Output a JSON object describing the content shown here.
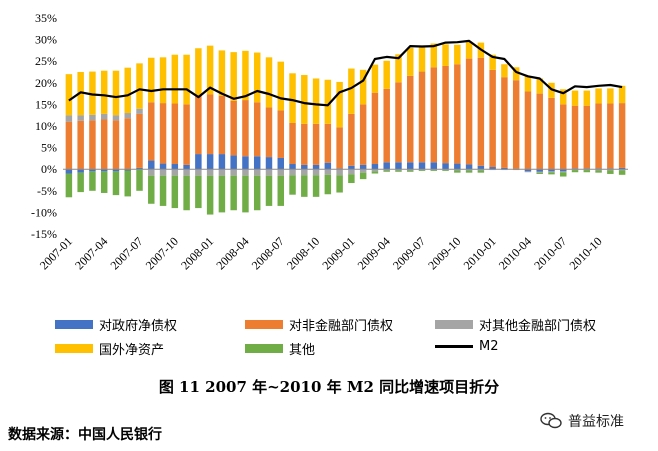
{
  "chart_data": {
    "type": "bar",
    "stacked": true,
    "y_axis": {
      "ylim": [
        -15,
        35
      ],
      "ticks": [
        "35%",
        "30%",
        "25%",
        "20%",
        "15%",
        "10%",
        "5%",
        "0%",
        "-5%",
        "-10%",
        "-15%"
      ]
    },
    "x_tick_labels": [
      {
        "label": "2007-01",
        "index": 0
      },
      {
        "label": "2007-04",
        "index": 3
      },
      {
        "label": "2007-07",
        "index": 6
      },
      {
        "label": "2007-10",
        "index": 9
      },
      {
        "label": "2008-01",
        "index": 12
      },
      {
        "label": "2008-04",
        "index": 15
      },
      {
        "label": "2008-07",
        "index": 18
      },
      {
        "label": "2008-10",
        "index": 21
      },
      {
        "label": "2009-01",
        "index": 24
      },
      {
        "label": "2009-04",
        "index": 27
      },
      {
        "label": "2009-07",
        "index": 30
      },
      {
        "label": "2009-10",
        "index": 33
      },
      {
        "label": "2010-01",
        "index": 36
      },
      {
        "label": "2010-04",
        "index": 39
      },
      {
        "label": "2010-07",
        "index": 42
      },
      {
        "label": "2010-10",
        "index": 45
      }
    ],
    "months": [
      "2007-01",
      "2007-02",
      "2007-03",
      "2007-04",
      "2007-05",
      "2007-06",
      "2007-07",
      "2007-08",
      "2007-09",
      "2007-10",
      "2007-11",
      "2007-12",
      "2008-01",
      "2008-02",
      "2008-03",
      "2008-04",
      "2008-05",
      "2008-06",
      "2008-07",
      "2008-08",
      "2008-09",
      "2008-10",
      "2008-11",
      "2008-12",
      "2009-01",
      "2009-02",
      "2009-03",
      "2009-04",
      "2009-05",
      "2009-06",
      "2009-07",
      "2009-08",
      "2009-09",
      "2009-10",
      "2009-11",
      "2009-12",
      "2010-01",
      "2010-02",
      "2010-03",
      "2010-04",
      "2010-05",
      "2010-06",
      "2010-07",
      "2010-08",
      "2010-09",
      "2010-10",
      "2010-11",
      "2010-12"
    ],
    "series": [
      {
        "name": "对政府净债权",
        "color": "#4472C4",
        "values": [
          -1.0,
          -0.8,
          -0.5,
          -0.5,
          -0.5,
          -0.3,
          0.3,
          2.0,
          1.3,
          1.2,
          1.0,
          3.5,
          3.5,
          3.5,
          3.2,
          3.0,
          3.0,
          2.8,
          2.6,
          1.2,
          1.0,
          1.0,
          1.5,
          0.2,
          0.8,
          1.0,
          1.2,
          1.6,
          1.6,
          1.6,
          1.6,
          1.6,
          1.4,
          1.3,
          1.1,
          0.8,
          0.5,
          0.3,
          0.1,
          -0.5,
          -0.6,
          -0.5,
          -0.5,
          0.2,
          0.2,
          0.2,
          0.2,
          0.3
        ]
      },
      {
        "name": "对非金融部门债权",
        "color": "#ED7D31",
        "values": [
          11.0,
          11.2,
          11.3,
          11.5,
          11.3,
          11.8,
          12.5,
          13.5,
          14.0,
          14.0,
          14.0,
          13.5,
          13.8,
          13.5,
          12.6,
          13.0,
          12.5,
          11.5,
          11.0,
          9.5,
          9.5,
          9.5,
          9.0,
          9.5,
          12.0,
          14.0,
          16.5,
          17.0,
          18.5,
          20.0,
          21.0,
          22.0,
          22.5,
          23.0,
          24.5,
          25.0,
          22.5,
          21.0,
          20.5,
          18.0,
          17.5,
          16.5,
          15.0,
          14.5,
          14.5,
          15.0,
          15.0,
          15.0
        ]
      },
      {
        "name": "对其他金融部门债权",
        "color": "#A5A5A5",
        "values": [
          1.5,
          1.3,
          1.3,
          1.3,
          1.2,
          1.2,
          1.2,
          -1.5,
          -1.5,
          -1.5,
          -1.5,
          -1.5,
          -1.5,
          -1.5,
          -1.5,
          -1.5,
          -1.5,
          -1.5,
          -1.5,
          -1.4,
          -1.4,
          -1.4,
          -1.3,
          -1.4,
          -1.2,
          -0.8,
          -0.5,
          -0.3,
          -0.3,
          -0.3,
          -0.2,
          -0.2,
          -0.2,
          -0.3,
          -0.3,
          -0.3,
          -0.2,
          -0.2,
          -0.2,
          -0.2,
          -0.2,
          -0.2,
          -0.2,
          -0.2,
          -0.2,
          -0.3,
          -0.3,
          -0.3
        ]
      },
      {
        "name": "国外净资产",
        "color": "#FFC000",
        "values": [
          9.5,
          10.0,
          10.0,
          10.0,
          10.3,
          10.5,
          10.5,
          10.3,
          10.6,
          11.3,
          11.5,
          11.0,
          11.3,
          10.5,
          11.3,
          11.4,
          11.5,
          11.6,
          11.3,
          11.5,
          11.3,
          10.5,
          10.2,
          10.5,
          10.5,
          8.0,
          6.5,
          6.5,
          6.5,
          6.5,
          6.0,
          5.5,
          5.0,
          4.5,
          3.8,
          3.5,
          3.5,
          3.0,
          3.0,
          3.5,
          3.5,
          3.5,
          3.5,
          3.5,
          3.5,
          3.5,
          3.5,
          4.0
        ]
      },
      {
        "name": "其他",
        "color": "#70AD47",
        "values": [
          -5.5,
          -4.5,
          -4.5,
          -5.0,
          -5.5,
          -6.0,
          -5.0,
          -6.5,
          -7.0,
          -7.5,
          -8.0,
          -7.5,
          -9.0,
          -8.5,
          -8.0,
          -8.5,
          -8.0,
          -7.0,
          -7.0,
          -4.5,
          -5.0,
          -5.0,
          -4.5,
          -4.0,
          -2.0,
          -1.5,
          -0.5,
          -0.3,
          -0.3,
          -0.3,
          -0.2,
          -0.2,
          -0.2,
          -0.5,
          -0.5,
          -0.5,
          0.0,
          0.0,
          0.0,
          0.0,
          -0.3,
          -0.5,
          -1.0,
          -0.5,
          -0.5,
          -0.5,
          -0.8,
          -1.0
        ]
      },
      {
        "name": "M2",
        "color": "#000000",
        "type": "line",
        "values": [
          15.9,
          17.8,
          17.3,
          17.1,
          16.7,
          17.1,
          18.5,
          18.1,
          18.5,
          18.5,
          18.5,
          16.7,
          18.9,
          17.5,
          16.3,
          16.9,
          18.1,
          17.4,
          16.4,
          16.0,
          15.3,
          15.0,
          14.8,
          17.8,
          18.8,
          20.5,
          25.5,
          26.0,
          25.7,
          28.5,
          28.4,
          28.5,
          29.3,
          29.4,
          29.7,
          27.7,
          26.0,
          25.5,
          22.5,
          21.5,
          21.0,
          18.5,
          17.6,
          19.2,
          19.0,
          19.3,
          19.5,
          19.0
        ]
      }
    ]
  },
  "figure": {
    "caption": "图 11   2007 年~2010 年 M2 同比增速项目折分",
    "source": "数据来源：中国人民银行",
    "watermark": "普益标准"
  }
}
